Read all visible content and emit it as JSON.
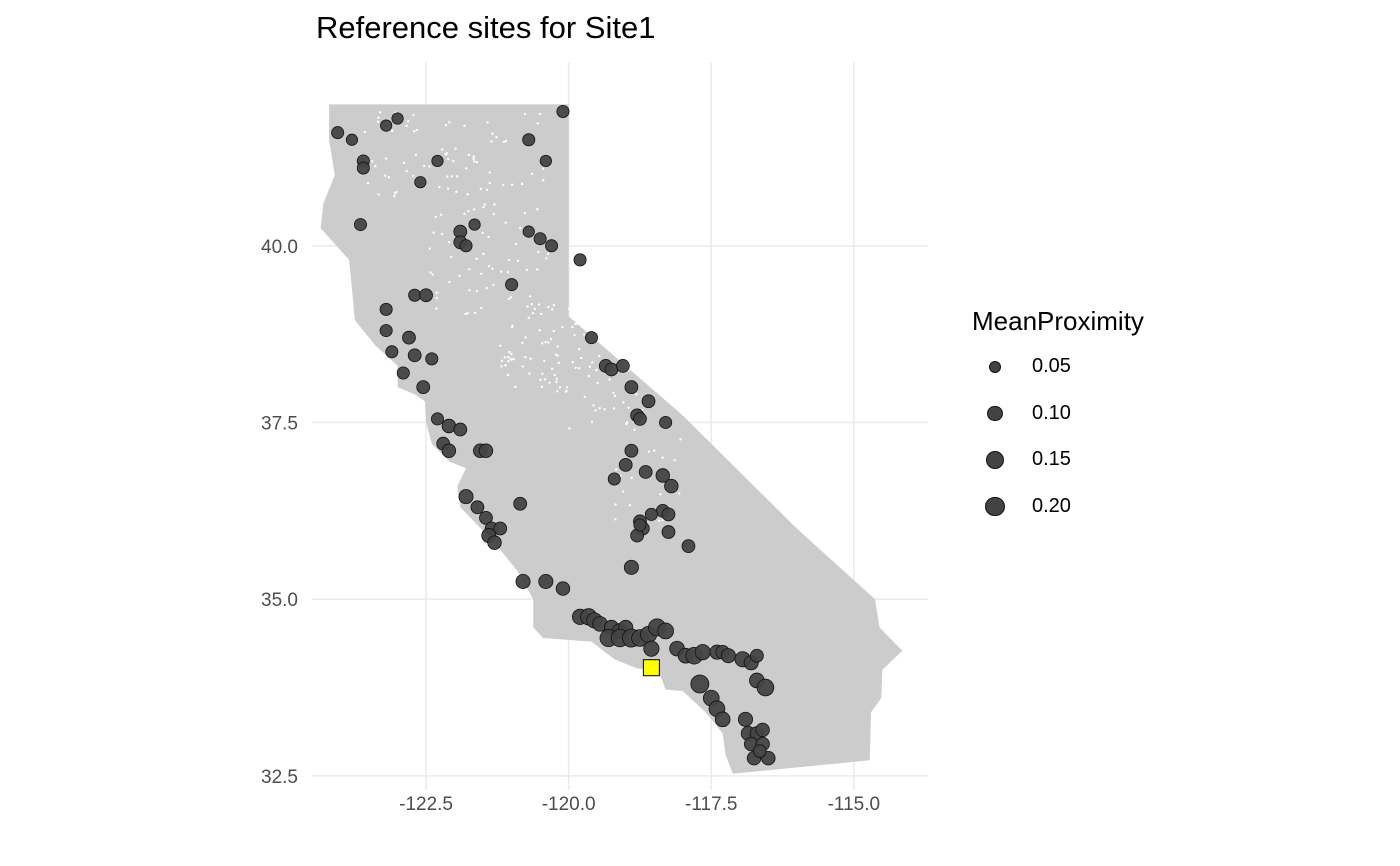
{
  "title": "Reference sites for Site1",
  "x_ticks": [
    {
      "value": -122.5,
      "label": "-122.5"
    },
    {
      "value": -120.0,
      "label": "-120.0"
    },
    {
      "value": -117.5,
      "label": "-117.5"
    },
    {
      "value": -115.0,
      "label": "-115.0"
    }
  ],
  "y_ticks": [
    {
      "value": 40.0,
      "label": "40.0"
    },
    {
      "value": 37.5,
      "label": "37.5"
    },
    {
      "value": 35.0,
      "label": "35.0"
    },
    {
      "value": 32.5,
      "label": "32.5"
    }
  ],
  "xlim": [
    -124.5,
    -113.7
  ],
  "ylim": [
    32.3,
    42.6
  ],
  "colors": {
    "land": "#cccccc",
    "grid": "#ebebeb",
    "point_fill": "#434343",
    "point_stroke": "#111111",
    "target_fill": "#ffff00",
    "white_sites": "#ffffff"
  },
  "legend": {
    "title": "MeanProximity",
    "entries": [
      {
        "label": "0.05",
        "value": 0.05
      },
      {
        "label": "0.10",
        "value": 0.1
      },
      {
        "label": "0.15",
        "value": 0.15
      },
      {
        "label": "0.20",
        "value": 0.2
      }
    ]
  },
  "target_site": {
    "lon": -118.55,
    "lat": 34.03
  },
  "reference_sites": [
    [
      -124.05,
      41.6,
      0.04
    ],
    [
      -123.8,
      41.5,
      0.03
    ],
    [
      -123.6,
      41.2,
      0.04
    ],
    [
      -123.6,
      41.1,
      0.04
    ],
    [
      -123.2,
      41.7,
      0.03
    ],
    [
      -123.0,
      41.8,
      0.03
    ],
    [
      -122.3,
      41.2,
      0.03
    ],
    [
      -122.6,
      40.9,
      0.03
    ],
    [
      -120.7,
      41.5,
      0.04
    ],
    [
      -120.1,
      41.9,
      0.04
    ],
    [
      -120.4,
      41.2,
      0.03
    ],
    [
      -123.65,
      40.3,
      0.04
    ],
    [
      -121.9,
      40.2,
      0.05
    ],
    [
      -121.9,
      40.05,
      0.05
    ],
    [
      -121.8,
      40.0,
      0.04
    ],
    [
      -121.65,
      40.3,
      0.03
    ],
    [
      -120.7,
      40.2,
      0.03
    ],
    [
      -120.5,
      40.1,
      0.04
    ],
    [
      -120.3,
      40.0,
      0.04
    ],
    [
      -119.8,
      39.8,
      0.04
    ],
    [
      -121.0,
      39.45,
      0.04
    ],
    [
      -122.7,
      39.3,
      0.04
    ],
    [
      -122.5,
      39.3,
      0.05
    ],
    [
      -123.2,
      39.1,
      0.04
    ],
    [
      -123.2,
      38.8,
      0.04
    ],
    [
      -123.1,
      38.5,
      0.04
    ],
    [
      -122.8,
      38.7,
      0.05
    ],
    [
      -122.7,
      38.45,
      0.05
    ],
    [
      -122.4,
      38.4,
      0.04
    ],
    [
      -122.9,
      38.2,
      0.04
    ],
    [
      -122.55,
      38.0,
      0.05
    ],
    [
      -122.3,
      37.55,
      0.04
    ],
    [
      -122.2,
      37.2,
      0.05
    ],
    [
      -122.1,
      37.45,
      0.06
    ],
    [
      -122.1,
      37.1,
      0.06
    ],
    [
      -121.9,
      37.4,
      0.05
    ],
    [
      -121.55,
      37.1,
      0.06
    ],
    [
      -121.45,
      37.1,
      0.06
    ],
    [
      -121.8,
      36.45,
      0.07
    ],
    [
      -121.6,
      36.3,
      0.05
    ],
    [
      -121.45,
      36.15,
      0.05
    ],
    [
      -121.35,
      36.0,
      0.05
    ],
    [
      -121.2,
      36.0,
      0.05
    ],
    [
      -121.4,
      35.9,
      0.07
    ],
    [
      -121.3,
      35.8,
      0.06
    ],
    [
      -120.85,
      36.35,
      0.05
    ],
    [
      -120.8,
      35.25,
      0.07
    ],
    [
      -120.4,
      35.25,
      0.07
    ],
    [
      -120.1,
      35.15,
      0.06
    ],
    [
      -119.6,
      38.7,
      0.04
    ],
    [
      -119.35,
      38.3,
      0.05
    ],
    [
      -119.25,
      38.25,
      0.05
    ],
    [
      -119.05,
      38.3,
      0.05
    ],
    [
      -118.9,
      38.0,
      0.05
    ],
    [
      -118.8,
      37.6,
      0.05
    ],
    [
      -118.75,
      37.55,
      0.05
    ],
    [
      -118.6,
      37.8,
      0.05
    ],
    [
      -118.3,
      37.5,
      0.04
    ],
    [
      -118.9,
      37.1,
      0.05
    ],
    [
      -119.0,
      36.9,
      0.05
    ],
    [
      -119.2,
      36.7,
      0.04
    ],
    [
      -118.65,
      36.8,
      0.05
    ],
    [
      -118.35,
      36.75,
      0.06
    ],
    [
      -118.2,
      36.6,
      0.06
    ],
    [
      -118.35,
      36.25,
      0.05
    ],
    [
      -118.25,
      36.2,
      0.05
    ],
    [
      -118.55,
      36.2,
      0.04
    ],
    [
      -118.75,
      36.1,
      0.05
    ],
    [
      -118.7,
      36.0,
      0.05
    ],
    [
      -118.8,
      35.9,
      0.05
    ],
    [
      -118.75,
      36.05,
      0.04
    ],
    [
      -118.25,
      35.95,
      0.05
    ],
    [
      -117.9,
      35.75,
      0.05
    ],
    [
      -118.9,
      35.45,
      0.07
    ],
    [
      -119.8,
      34.75,
      0.09
    ],
    [
      -119.65,
      34.75,
      0.11
    ],
    [
      -119.55,
      34.7,
      0.09
    ],
    [
      -119.45,
      34.65,
      0.08
    ],
    [
      -119.25,
      34.6,
      0.07
    ],
    [
      -119.1,
      34.55,
      0.08
    ],
    [
      -119.0,
      34.6,
      0.07
    ],
    [
      -119.3,
      34.45,
      0.13
    ],
    [
      -119.1,
      34.45,
      0.14
    ],
    [
      -118.9,
      34.45,
      0.15
    ],
    [
      -118.75,
      34.45,
      0.12
    ],
    [
      -118.6,
      34.5,
      0.11
    ],
    [
      -118.45,
      34.6,
      0.13
    ],
    [
      -118.3,
      34.55,
      0.1
    ],
    [
      -118.55,
      34.3,
      0.09
    ],
    [
      -118.1,
      34.3,
      0.08
    ],
    [
      -117.95,
      34.2,
      0.08
    ],
    [
      -117.8,
      34.2,
      0.12
    ],
    [
      -117.65,
      34.25,
      0.09
    ],
    [
      -117.4,
      34.25,
      0.07
    ],
    [
      -117.3,
      34.25,
      0.06
    ],
    [
      -117.2,
      34.2,
      0.07
    ],
    [
      -116.95,
      34.15,
      0.09
    ],
    [
      -116.8,
      34.1,
      0.07
    ],
    [
      -116.7,
      34.2,
      0.05
    ],
    [
      -117.7,
      33.8,
      0.15
    ],
    [
      -117.5,
      33.6,
      0.1
    ],
    [
      -117.4,
      33.45,
      0.1
    ],
    [
      -117.3,
      33.3,
      0.08
    ],
    [
      -116.7,
      33.85,
      0.08
    ],
    [
      -116.55,
      33.75,
      0.12
    ],
    [
      -116.9,
      33.3,
      0.07
    ],
    [
      -116.85,
      33.1,
      0.07
    ],
    [
      -116.7,
      33.1,
      0.06
    ],
    [
      -116.6,
      33.15,
      0.06
    ],
    [
      -116.8,
      32.95,
      0.06
    ],
    [
      -116.6,
      32.95,
      0.06
    ],
    [
      -116.75,
      32.75,
      0.06
    ],
    [
      -116.5,
      32.75,
      0.06
    ],
    [
      -116.65,
      32.85,
      0.05
    ]
  ]
}
